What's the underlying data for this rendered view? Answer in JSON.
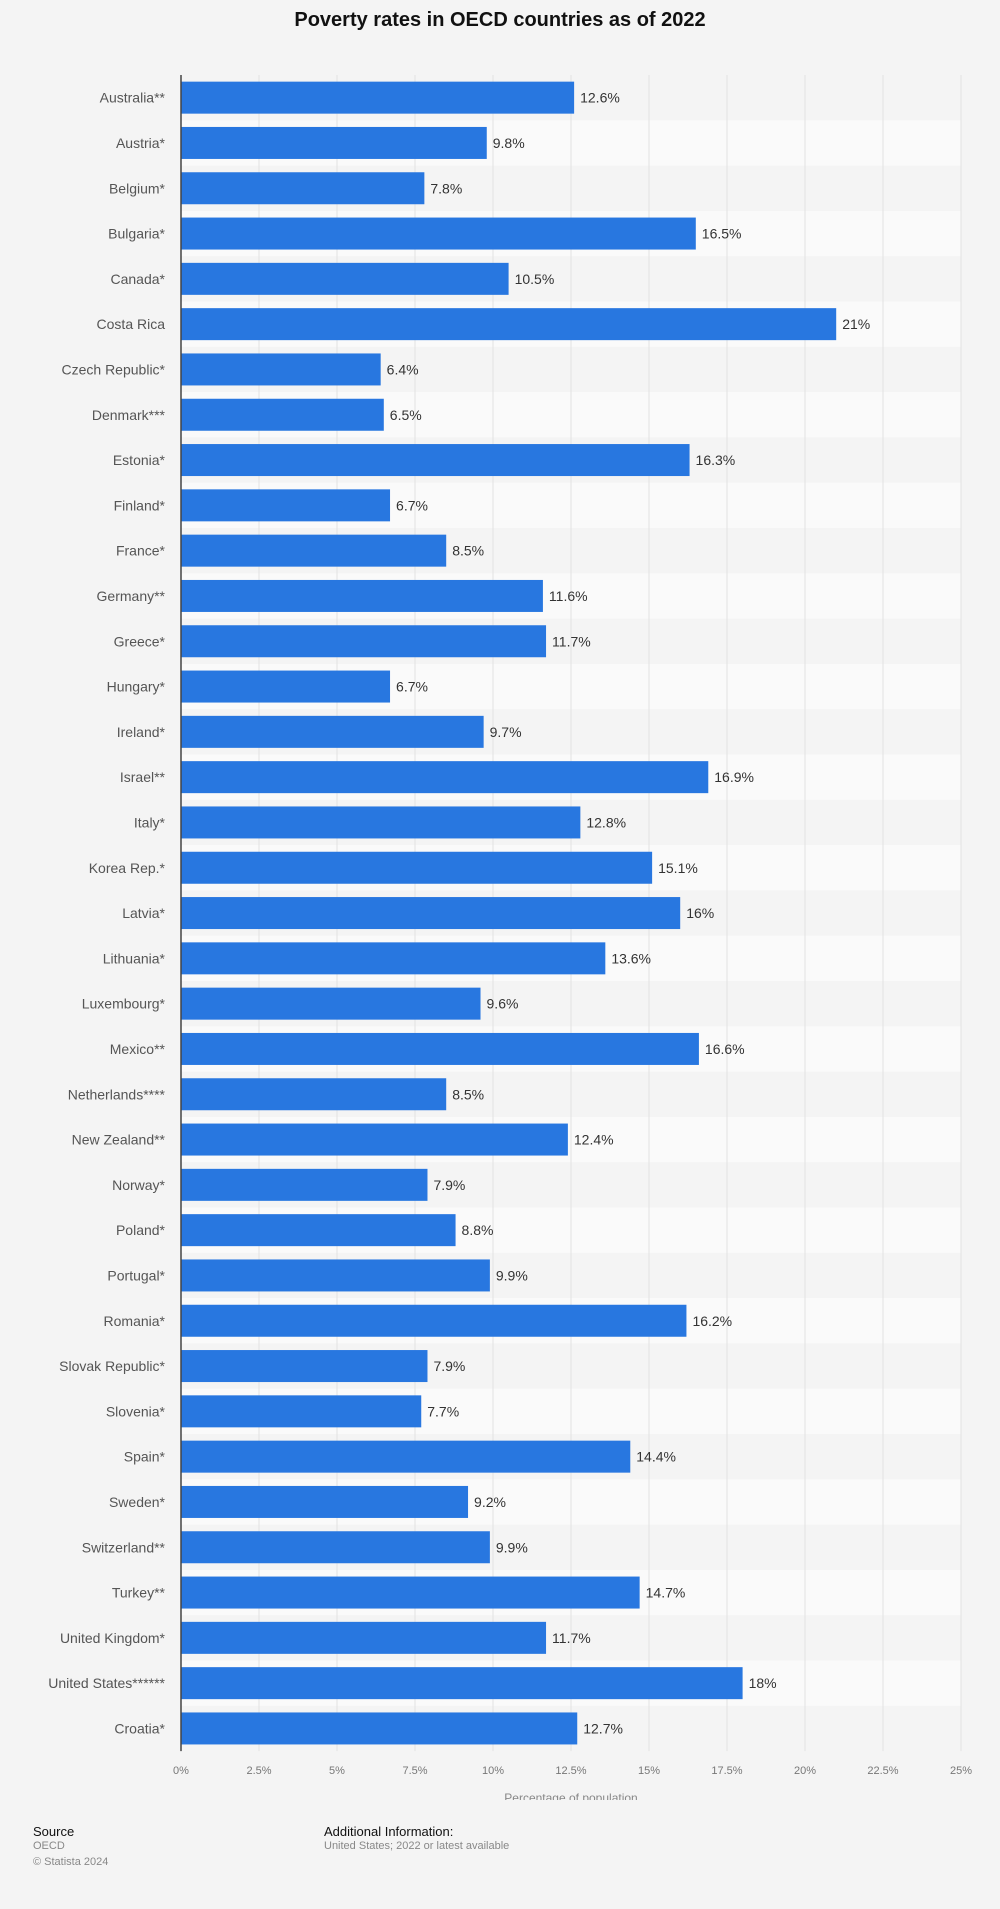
{
  "chart_data": {
    "type": "bar",
    "orientation": "horizontal",
    "title": "Poverty rates in OECD countries as of 2022",
    "xlabel": "Percentage of population",
    "ylabel": "",
    "xlim": [
      0,
      25
    ],
    "ticks": [
      0,
      2.5,
      5,
      7.5,
      10,
      12.5,
      15,
      17.5,
      20,
      22.5,
      25
    ],
    "tick_labels": [
      "0%",
      "2.5%",
      "5%",
      "7.5%",
      "10%",
      "12.5%",
      "15%",
      "17.5%",
      "20%",
      "22.5%",
      "25%"
    ],
    "grid": true,
    "legend": "none",
    "bar_color": "#2877e0",
    "categories": [
      "Australia**",
      "Austria*",
      "Belgium*",
      "Bulgaria*",
      "Canada*",
      "Costa Rica",
      "Czech Republic*",
      "Denmark***",
      "Estonia*",
      "Finland*",
      "France*",
      "Germany**",
      "Greece*",
      "Hungary*",
      "Ireland*",
      "Israel**",
      "Italy*",
      "Korea Rep.*",
      "Latvia*",
      "Lithuania*",
      "Luxembourg*",
      "Mexico**",
      "Netherlands****",
      "New Zealand**",
      "Norway*",
      "Poland*",
      "Portugal*",
      "Romania*",
      "Slovak Republic*",
      "Slovenia*",
      "Spain*",
      "Sweden*",
      "Switzerland**",
      "Turkey**",
      "United Kingdom*",
      "United States******",
      "Croatia*"
    ],
    "values": [
      12.6,
      9.8,
      7.8,
      16.5,
      10.5,
      21,
      6.4,
      6.5,
      16.3,
      6.7,
      8.5,
      11.6,
      11.7,
      6.7,
      9.7,
      16.9,
      12.8,
      15.1,
      16,
      13.6,
      9.6,
      16.6,
      8.5,
      12.4,
      7.9,
      8.8,
      9.9,
      16.2,
      7.9,
      7.7,
      14.4,
      9.2,
      9.9,
      14.7,
      11.7,
      18,
      12.7
    ],
    "value_labels": [
      "12.6%",
      "9.8%",
      "7.8%",
      "16.5%",
      "10.5%",
      "21%",
      "6.4%",
      "6.5%",
      "16.3%",
      "6.7%",
      "8.5%",
      "11.6%",
      "11.7%",
      "6.7%",
      "9.7%",
      "16.9%",
      "12.8%",
      "15.1%",
      "16%",
      "13.6%",
      "9.6%",
      "16.6%",
      "8.5%",
      "12.4%",
      "7.9%",
      "8.8%",
      "9.9%",
      "16.2%",
      "7.9%",
      "7.7%",
      "14.4%",
      "9.2%",
      "9.9%",
      "14.7%",
      "11.7%",
      "18%",
      "12.7%"
    ]
  },
  "footer": {
    "source_heading": "Source",
    "source_name": "OECD",
    "copyright": "© Statista 2024",
    "info_heading": "Additional Information:",
    "info_text": "United States; 2022 or latest available"
  }
}
